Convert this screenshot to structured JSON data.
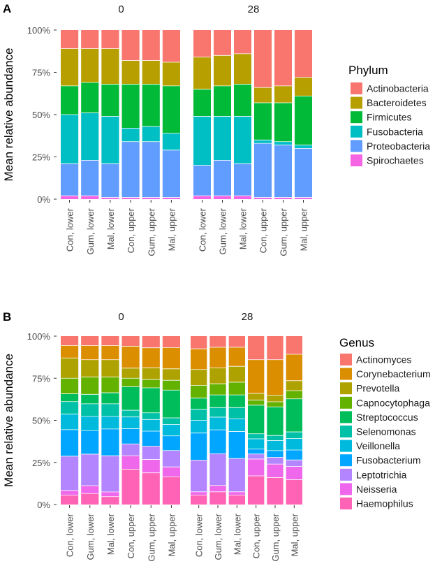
{
  "chart_data": [
    {
      "panel": "A",
      "type": "bar",
      "stacked": true,
      "facets": [
        "0",
        "28"
      ],
      "categories": [
        "Con, lower",
        "Gum, lower",
        "Mal, lower",
        "Con, upper",
        "Gum, upper",
        "Mal, upper"
      ],
      "ylabel": "Mean relative abundance",
      "ylim": [
        0,
        100
      ],
      "yticks": [
        "0%",
        "25%",
        "50%",
        "75%",
        "100%"
      ],
      "legend_title": "Phylum",
      "legend_position": "right",
      "series": [
        {
          "name": "Actinobacteria",
          "color": "#F8766D",
          "values": {
            "0": [
              11,
              11,
              11,
              18,
              18,
              19
            ],
            "28": [
              16,
              15,
              14,
              34,
              33,
              28
            ]
          }
        },
        {
          "name": "Bacteroidetes",
          "color": "#B79F00",
          "values": {
            "0": [
              22,
              20,
              21,
              14,
              14,
              14
            ],
            "28": [
              19,
              18,
              18,
              9,
              10,
              11
            ]
          }
        },
        {
          "name": "Firmicutes",
          "color": "#00BA38",
          "values": {
            "0": [
              17,
              18,
              19,
              26,
              25,
              28
            ],
            "28": [
              16,
              18,
              19,
              22,
              23,
              29
            ]
          }
        },
        {
          "name": "Fusobacteria",
          "color": "#00BFC4",
          "values": {
            "0": [
              29,
              28,
              28,
              8,
              9,
              10
            ],
            "28": [
              29,
              26,
              28,
              2,
              2,
              2
            ]
          }
        },
        {
          "name": "Proteobacteria",
          "color": "#619CFF",
          "values": {
            "0": [
              19,
              21,
              20,
              33,
              33,
              28
            ],
            "28": [
              18,
              21,
              19,
              32,
              31,
              29
            ]
          }
        },
        {
          "name": "Spirochaetes",
          "color": "#F564E3",
          "values": {
            "0": [
              2,
              2,
              1,
              1,
              1,
              1
            ],
            "28": [
              2,
              2,
              2,
              1,
              1,
              1
            ]
          }
        }
      ]
    },
    {
      "panel": "B",
      "type": "bar",
      "stacked": true,
      "facets": [
        "0",
        "28"
      ],
      "categories": [
        "Con, lower",
        "Gum, lower",
        "Mal, lower",
        "Con, upper",
        "Gum, upper",
        "Mal, upper"
      ],
      "ylabel": "Mean relative abundance",
      "ylim": [
        0,
        100
      ],
      "yticks": [
        "0%",
        "25%",
        "50%",
        "75%",
        "100%"
      ],
      "legend_title": "Genus",
      "legend_position": "right",
      "series": [
        {
          "name": "Actinomyces",
          "color": "#F8766D",
          "values": {
            "0": [
              6,
              6,
              6,
              6,
              7,
              7
            ],
            "28": [
              8,
              7,
              7,
              14,
              14,
              11
            ]
          }
        },
        {
          "name": "Corynebacterium",
          "color": "#DB8E00",
          "values": {
            "0": [
              8,
              9,
              9,
              13,
              12,
              13
            ],
            "28": [
              13,
              13,
              12,
              20,
              21,
              16
            ]
          }
        },
        {
          "name": "Prevotella",
          "color": "#AEA200",
          "values": {
            "0": [
              13,
              11,
              11,
              6,
              7,
              7
            ],
            "28": [
              10,
              10,
              10,
              4,
              4,
              6
            ]
          }
        },
        {
          "name": "Capnocytophaga",
          "color": "#64B200",
          "values": {
            "0": [
              10,
              11,
              10,
              5,
              5,
              6
            ],
            "28": [
              8,
              7,
              8,
              3,
              3,
              5
            ]
          }
        },
        {
          "name": "Streptococcus",
          "color": "#00BD5C",
          "values": {
            "0": [
              5,
              6,
              7,
              14,
              15,
              17
            ],
            "28": [
              7,
              8,
              8,
              17,
              17,
              20
            ]
          }
        },
        {
          "name": "Selenomonas",
          "color": "#00C1A7",
          "values": {
            "0": [
              8,
              8,
              8,
              4,
              4,
              4
            ],
            "28": [
              7,
              6,
              7,
              3,
              3,
              4
            ]
          }
        },
        {
          "name": "Veillonella",
          "color": "#00BADE",
          "values": {
            "0": [
              10,
              9,
              8,
              7,
              7,
              7
            ],
            "28": [
              8,
              8,
              8,
              6,
              6,
              7
            ]
          }
        },
        {
          "name": "Fusobacterium",
          "color": "#00A6FF",
          "values": {
            "0": [
              17,
              15,
              17,
              9,
              9,
              9
            ],
            "28": [
              17,
              15,
              17,
              3,
              4,
              6
            ]
          }
        },
        {
          "name": "Leptotrichia",
          "color": "#B385FF",
          "values": {
            "0": [
              22,
              20,
              23,
              7,
              8,
              10
            ],
            "28": [
              20,
              20,
              21,
              3,
              4,
              4
            ]
          }
        },
        {
          "name": "Neisseria",
          "color": "#EF67EB",
          "values": {
            "0": [
              3,
              5,
              3,
              8,
              8,
              6
            ],
            "28": [
              2,
              4,
              2,
              10,
              8,
              8
            ]
          }
        },
        {
          "name": "Haemophilus",
          "color": "#FF63B6",
          "values": {
            "0": [
              6,
              7,
              5,
              21,
              19,
              17
            ],
            "28": [
              6,
              8,
              6,
              17,
              16,
              15
            ]
          }
        }
      ]
    }
  ]
}
